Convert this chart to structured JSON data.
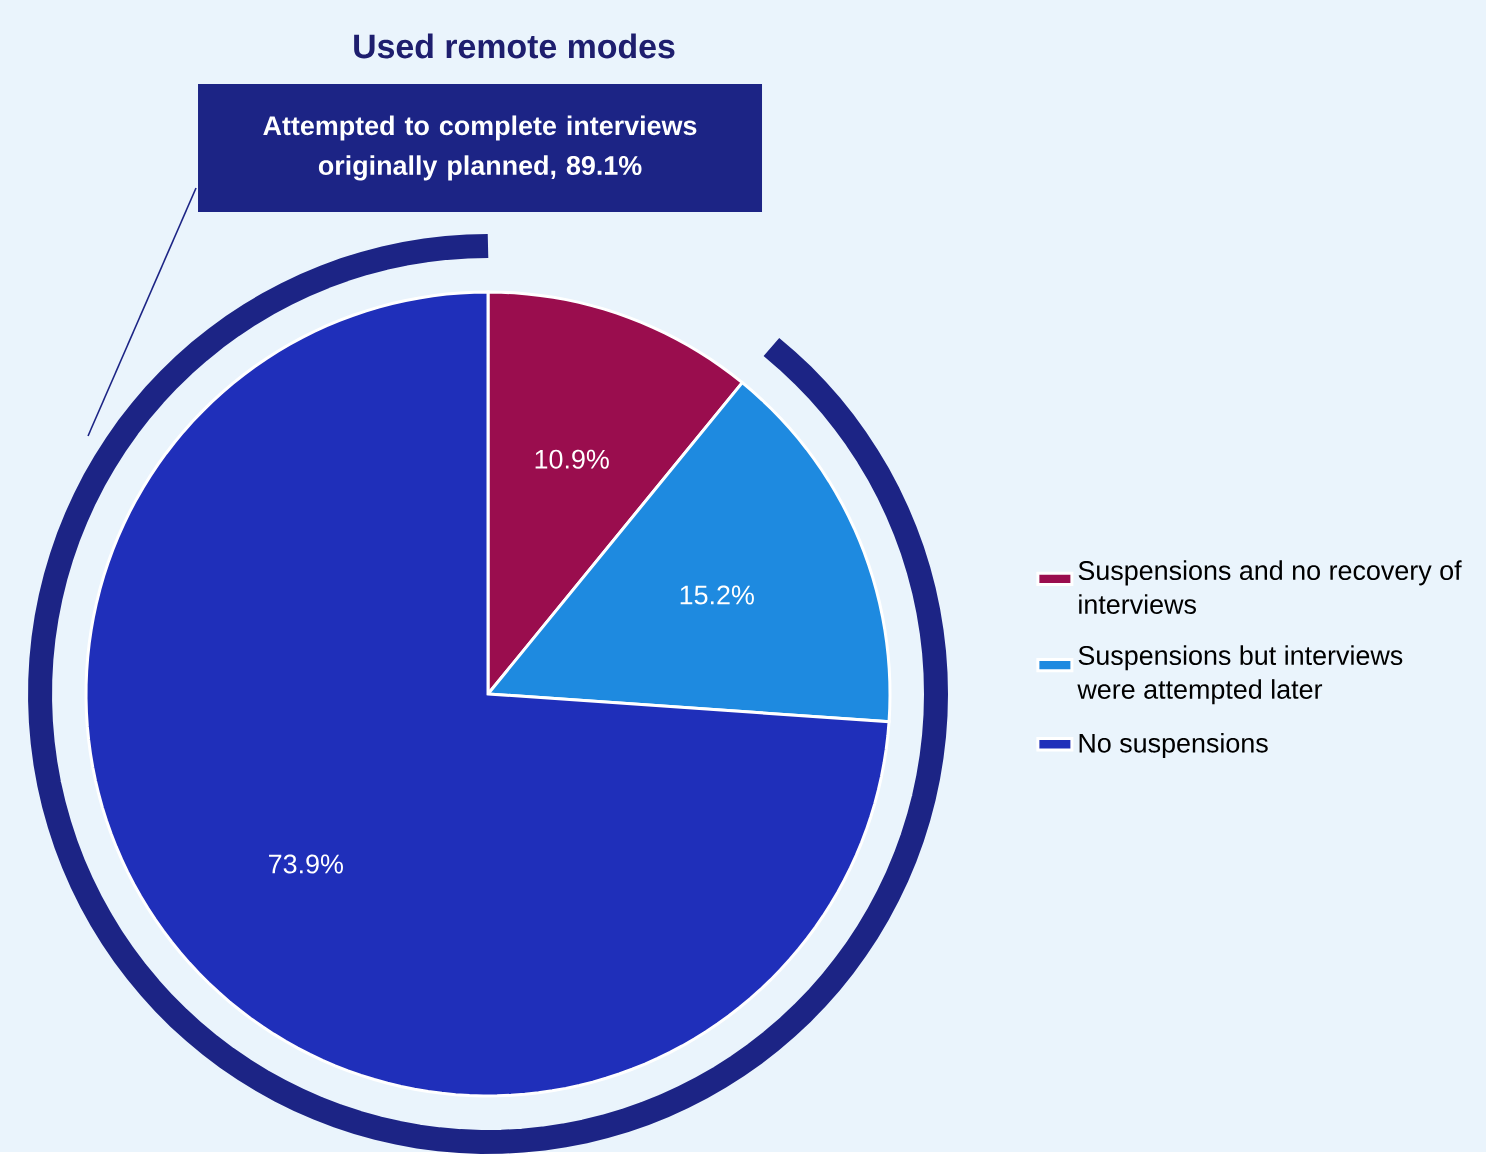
{
  "chart_data": {
    "type": "pie",
    "title": "Used remote modes",
    "categories": [
      "Suspensions and no recovery of interviews",
      "Suspensions but interviews were attempted later",
      "No suspensions"
    ],
    "values": [
      10.9,
      15.2,
      73.9
    ],
    "colors": [
      "#9a0d4e",
      "#1e8ae0",
      "#1f2fba"
    ],
    "value_labels": [
      "10.9%",
      "15.2%",
      "73.9%"
    ],
    "annotations": [
      "Attempted to complete interviews originally planned, 89.1%"
    ],
    "legend": "right"
  }
}
